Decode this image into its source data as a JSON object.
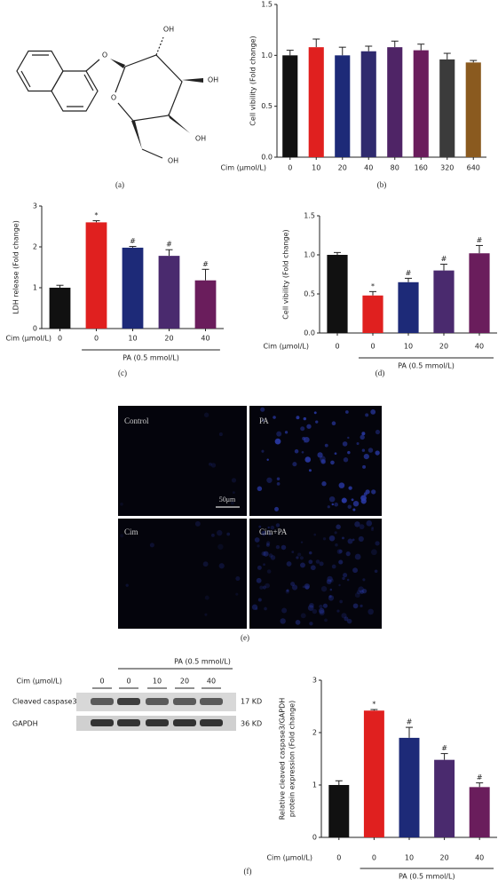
{
  "structure": {
    "label": "(a)",
    "atoms": [
      "O",
      "O",
      "OH",
      "OH",
      "OH",
      "OH"
    ]
  },
  "chart_data": [
    {
      "type": "bar",
      "label": "(b)",
      "ylabel": [
        "Cell vibility (Fold change)"
      ],
      "xlabel": "Cim (μmol/L)",
      "categories": [
        "0",
        "10",
        "20",
        "40",
        "80",
        "160",
        "320",
        "640"
      ],
      "values": [
        1.0,
        1.08,
        1.0,
        1.04,
        1.08,
        1.05,
        0.96,
        0.93
      ],
      "errors": [
        0.05,
        0.08,
        0.08,
        0.05,
        0.06,
        0.06,
        0.06,
        0.02
      ],
      "colors": [
        "#111111",
        "#e0201f",
        "#1d2a78",
        "#2f2a6e",
        "#4f2466",
        "#6a1d5c",
        "#3b3b3b",
        "#8a5a1f"
      ],
      "ylim": [
        0,
        1.5
      ],
      "yticks": [
        {
          "value": 0,
          "label": "0.0"
        },
        0.5,
        {
          "value": 1,
          "label": "1.0"
        },
        1.5
      ]
    },
    {
      "type": "bar",
      "label": "(c)",
      "ylabel": [
        "LDH release (Fold change)"
      ],
      "xlabel": "Cim (μmol/L)",
      "group": "PA (0.5 mmol/L)",
      "categories": [
        "0",
        "0",
        "10",
        "20",
        "40"
      ],
      "values": [
        1.0,
        2.6,
        1.98,
        1.78,
        1.18
      ],
      "errors": [
        0.06,
        0.04,
        0.03,
        0.15,
        0.27
      ],
      "annotations": [
        null,
        "*",
        "#",
        "#",
        "#"
      ],
      "colors": [
        "#111111",
        "#e0201f",
        "#1d2a78",
        "#4a2a6e",
        "#6a1d5c"
      ],
      "ylim": [
        0,
        3
      ],
      "yticks": [
        0,
        1,
        2,
        3
      ]
    },
    {
      "type": "bar",
      "label": "(d)",
      "ylabel": [
        "Cell vibility (Fold change)"
      ],
      "xlabel": "Cim (μmol/L)",
      "group": "PA (0.5 mmol/L)",
      "categories": [
        "0",
        "0",
        "10",
        "20",
        "40"
      ],
      "values": [
        1.0,
        0.48,
        0.65,
        0.8,
        1.02
      ],
      "errors": [
        0.03,
        0.05,
        0.05,
        0.08,
        0.1
      ],
      "annotations": [
        null,
        "*",
        "#",
        "#",
        "#"
      ],
      "colors": [
        "#111111",
        "#e0201f",
        "#1d2a78",
        "#4a2a6e",
        "#6a1d5c"
      ],
      "ylim": [
        0,
        1.5
      ],
      "yticks": [
        {
          "value": 0,
          "label": "0.0"
        },
        0.5,
        {
          "value": 1,
          "label": "1.0"
        },
        1.5
      ]
    },
    {
      "type": "bar",
      "label": "(f)",
      "ylabel": [
        "Relative cleaved caspase3/GAPDH",
        "protein expression (Fold change)"
      ],
      "xlabel": "Cim (μmol/L)",
      "group": "PA (0.5 mmol/L)",
      "categories": [
        "0",
        "0",
        "10",
        "20",
        "40"
      ],
      "values": [
        1.0,
        2.42,
        1.9,
        1.48,
        0.96
      ],
      "errors": [
        0.08,
        0.02,
        0.2,
        0.12,
        0.08
      ],
      "annotations": [
        null,
        "*",
        "#",
        "#",
        "#"
      ],
      "colors": [
        "#111111",
        "#e0201f",
        "#1d2a78",
        "#4a2a6e",
        "#6a1d5c"
      ],
      "ylim": [
        0,
        3
      ],
      "yticks": [
        0,
        1,
        2,
        3
      ]
    }
  ],
  "images": {
    "label": "(e)",
    "panels": [
      "Control",
      "PA",
      "Cim",
      "Cim+PA"
    ],
    "scale_bar": "50μm"
  },
  "blot": {
    "xlabel": "Cim (μmol/L)",
    "group": "PA (0.5 mmol/L)",
    "categories": [
      "0",
      "0",
      "10",
      "20",
      "40"
    ],
    "rows": [
      {
        "name": "Cleaved caspase3",
        "size": "17 KD"
      },
      {
        "name": "GAPDH",
        "size": "36 KD"
      }
    ]
  }
}
